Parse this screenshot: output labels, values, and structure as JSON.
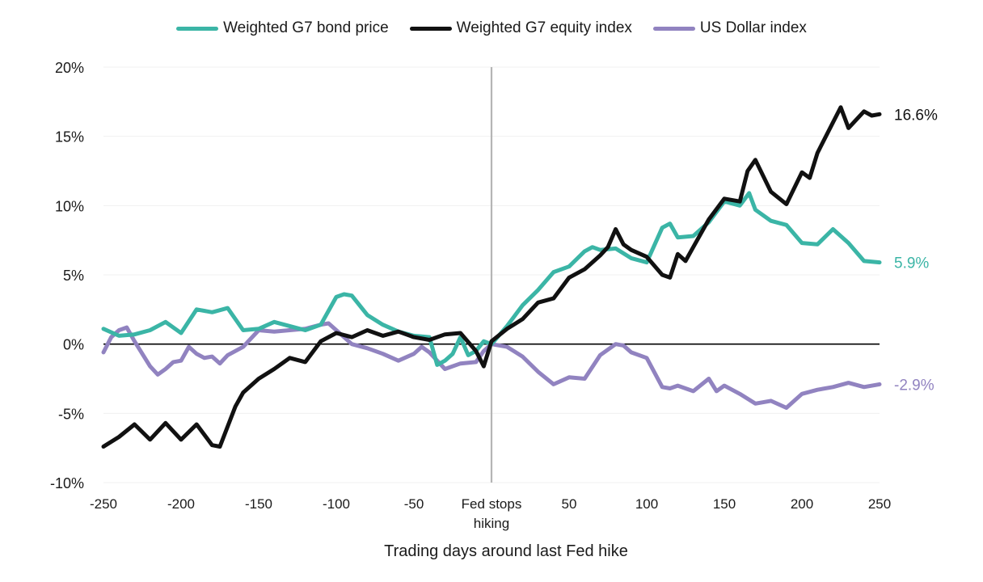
{
  "chart_data": {
    "type": "line",
    "title": "",
    "xlabel": "Trading days around last Fed hike",
    "ylabel": "",
    "xlim": [
      -250,
      250
    ],
    "ylim": [
      -10,
      20
    ],
    "x_ticks": [
      -250,
      -200,
      -150,
      -100,
      -50,
      0,
      50,
      100,
      150,
      200,
      250
    ],
    "x_tick_labels": [
      "-250",
      "-200",
      "-150",
      "-100",
      "-50",
      "Fed stops",
      "50",
      "100",
      "150",
      "200",
      "250"
    ],
    "x_tick_label_zero_line2": "hiking",
    "y_ticks": [
      -10,
      -5,
      0,
      5,
      10,
      15,
      20
    ],
    "y_tick_labels": [
      "-10%",
      "-5%",
      "0%",
      "5%",
      "10%",
      "15%",
      "20%"
    ],
    "legend_position": "top-center",
    "series": [
      {
        "name": "Weighted G7 bond price",
        "color": "#3bb5a6",
        "end_label": "5.9%",
        "x": [
          -250,
          -240,
          -230,
          -220,
          -210,
          -200,
          -190,
          -180,
          -170,
          -160,
          -150,
          -140,
          -130,
          -120,
          -110,
          -100,
          -95,
          -90,
          -85,
          -80,
          -70,
          -60,
          -50,
          -40,
          -35,
          -30,
          -25,
          -20,
          -15,
          -10,
          -5,
          0,
          10,
          20,
          30,
          40,
          50,
          60,
          65,
          70,
          80,
          90,
          100,
          110,
          115,
          120,
          130,
          140,
          150,
          160,
          166,
          170,
          180,
          190,
          200,
          210,
          220,
          230,
          240,
          250
        ],
        "values": [
          1.1,
          0.6,
          0.7,
          1.0,
          1.6,
          0.8,
          2.5,
          2.3,
          2.6,
          1.0,
          1.1,
          1.6,
          1.3,
          1.0,
          1.4,
          3.4,
          3.6,
          3.5,
          2.8,
          2.1,
          1.4,
          0.9,
          0.6,
          0.5,
          -1.5,
          -1.2,
          -0.7,
          0.5,
          -0.8,
          -0.5,
          0.2,
          0.0,
          1.3,
          2.8,
          3.9,
          5.2,
          5.6,
          6.7,
          7.0,
          6.8,
          6.9,
          6.2,
          5.9,
          8.4,
          8.7,
          7.7,
          7.8,
          8.8,
          10.3,
          10.0,
          10.9,
          9.7,
          8.9,
          8.6,
          7.3,
          7.2,
          8.3,
          7.3,
          6.0,
          5.9
        ]
      },
      {
        "name": "Weighted G7 equity index",
        "color": "#111111",
        "end_label": "16.6%",
        "x": [
          -250,
          -240,
          -230,
          -220,
          -210,
          -200,
          -190,
          -180,
          -175,
          -165,
          -160,
          -150,
          -140,
          -130,
          -120,
          -110,
          -100,
          -90,
          -80,
          -70,
          -60,
          -50,
          -40,
          -30,
          -20,
          -10,
          -5,
          0,
          10,
          20,
          30,
          40,
          50,
          60,
          70,
          75,
          80,
          85,
          90,
          100,
          110,
          115,
          120,
          125,
          130,
          140,
          150,
          160,
          165,
          170,
          180,
          190,
          200,
          205,
          210,
          220,
          225,
          230,
          240,
          245,
          250
        ],
        "values": [
          -7.4,
          -6.7,
          -5.8,
          -6.9,
          -5.7,
          -6.9,
          -5.8,
          -7.3,
          -7.4,
          -4.5,
          -3.5,
          -2.5,
          -1.8,
          -1.0,
          -1.3,
          0.2,
          0.8,
          0.5,
          1.0,
          0.6,
          0.9,
          0.5,
          0.3,
          0.7,
          0.8,
          -0.5,
          -1.6,
          0.2,
          1.1,
          1.8,
          3.0,
          3.3,
          4.8,
          5.4,
          6.4,
          7.0,
          8.3,
          7.2,
          6.8,
          6.3,
          5.0,
          4.8,
          6.5,
          6.0,
          7.0,
          9.0,
          10.5,
          10.3,
          12.5,
          13.3,
          11.0,
          10.1,
          12.4,
          12.0,
          13.8,
          16.0,
          17.1,
          15.6,
          16.8,
          16.5,
          16.6
        ]
      },
      {
        "name": "US Dollar index",
        "color": "#9183c0",
        "end_label": "-2.9%",
        "x": [
          -250,
          -245,
          -240,
          -235,
          -230,
          -220,
          -215,
          -210,
          -205,
          -200,
          -195,
          -190,
          -185,
          -180,
          -175,
          -170,
          -160,
          -150,
          -140,
          -130,
          -120,
          -110,
          -105,
          -100,
          -90,
          -80,
          -70,
          -60,
          -50,
          -45,
          -40,
          -30,
          -20,
          -10,
          -5,
          0,
          10,
          20,
          30,
          40,
          50,
          60,
          70,
          80,
          85,
          90,
          100,
          110,
          115,
          120,
          130,
          140,
          145,
          150,
          160,
          170,
          180,
          190,
          200,
          210,
          220,
          230,
          240,
          250
        ],
        "values": [
          -0.6,
          0.5,
          1.0,
          1.2,
          0.2,
          -1.6,
          -2.2,
          -1.8,
          -1.3,
          -1.2,
          -0.2,
          -0.7,
          -1.0,
          -0.9,
          -1.4,
          -0.8,
          -0.2,
          1.0,
          0.9,
          1.0,
          1.1,
          1.4,
          1.5,
          1.0,
          0.0,
          -0.3,
          -0.7,
          -1.2,
          -0.7,
          -0.2,
          -0.6,
          -1.8,
          -1.4,
          -1.3,
          -0.5,
          0.0,
          -0.2,
          -0.9,
          -2.0,
          -2.9,
          -2.4,
          -2.5,
          -0.8,
          0.0,
          -0.1,
          -0.6,
          -1.0,
          -3.1,
          -3.2,
          -3.0,
          -3.4,
          -2.5,
          -3.4,
          -3.0,
          -3.6,
          -4.3,
          -4.1,
          -4.6,
          -3.6,
          -3.3,
          -3.1,
          -2.8,
          -3.1,
          -2.9
        ]
      }
    ]
  }
}
